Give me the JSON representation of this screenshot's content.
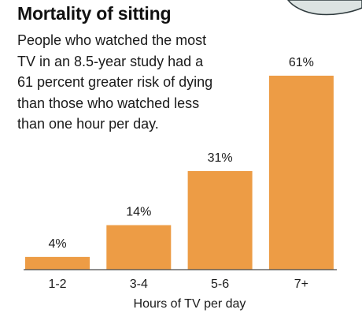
{
  "header": {
    "title": "Mortality of sitting",
    "subtitle_lines": [
      "People who watched the most",
      "TV in an 8.5-year study had a",
      "61 percent greater risk of dying",
      "than those who watched less",
      "than one hour per day."
    ]
  },
  "colors": {
    "bar": "#ED9C45",
    "axis": "#4a4a4a",
    "text": "#1a1a1a"
  },
  "chart_data": {
    "type": "bar",
    "title": "Mortality of sitting",
    "xlabel": "Hours of TV per day",
    "ylabel": "",
    "categories": [
      "1-2",
      "3-4",
      "5-6",
      "7+"
    ],
    "values": [
      4,
      14,
      31,
      61
    ],
    "data_labels": [
      "4%",
      "14%",
      "31%",
      "61%"
    ],
    "ylim": [
      0,
      61
    ],
    "grid": false,
    "legend": "none"
  }
}
